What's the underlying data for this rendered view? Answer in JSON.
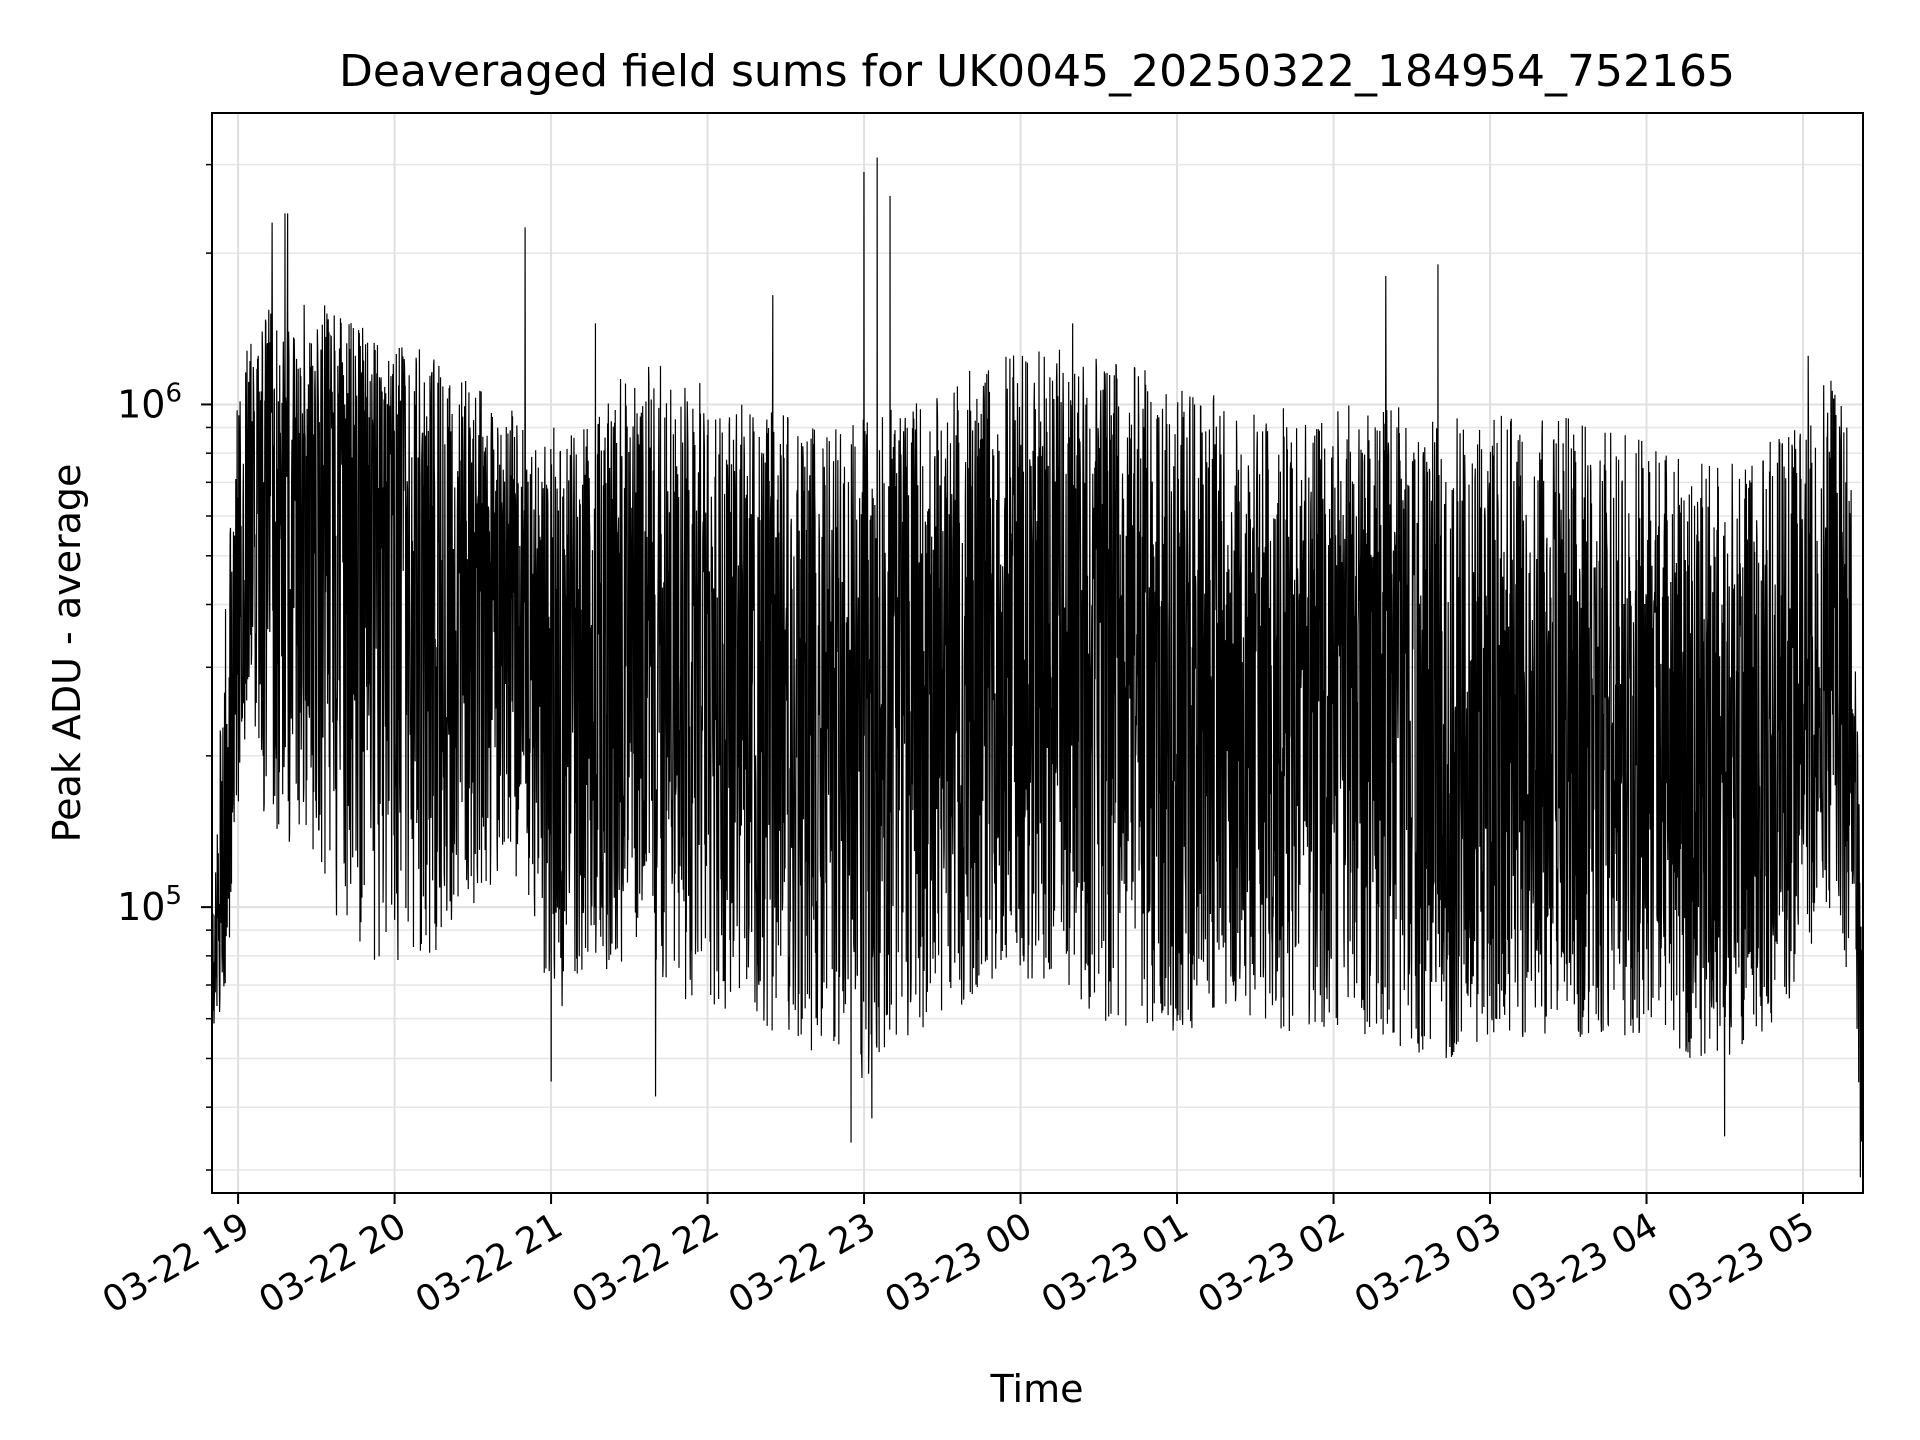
{
  "chart_data": {
    "type": "line",
    "title": "Deaveraged field sums for UK0045_20250322_184954_752165",
    "xlabel": "Time",
    "ylabel": "Peak ADU - average",
    "yscale": "log",
    "ylim": [
      27000,
      3800000
    ],
    "xlim": [
      "2025-03-22 18:50",
      "2025-03-23 05:23"
    ],
    "grid": true,
    "series_color": "#000000",
    "x_ticks": [
      {
        "label": "03-22 19",
        "time": "2025-03-22 19:00"
      },
      {
        "label": "03-22 20",
        "time": "2025-03-22 20:00"
      },
      {
        "label": "03-22 21",
        "time": "2025-03-22 21:00"
      },
      {
        "label": "03-22 22",
        "time": "2025-03-22 22:00"
      },
      {
        "label": "03-22 23",
        "time": "2025-03-22 23:00"
      },
      {
        "label": "03-23 00",
        "time": "2025-03-23 00:00"
      },
      {
        "label": "03-23 01",
        "time": "2025-03-23 01:00"
      },
      {
        "label": "03-23 02",
        "time": "2025-03-23 02:00"
      },
      {
        "label": "03-23 03",
        "time": "2025-03-23 03:00"
      },
      {
        "label": "03-23 04",
        "time": "2025-03-23 04:00"
      },
      {
        "label": "03-23 05",
        "time": "2025-03-23 05:00"
      }
    ],
    "y_ticks": [
      {
        "base": "10",
        "exp": "5",
        "value": 100000
      },
      {
        "base": "10",
        "exp": "6",
        "value": 1000000
      }
    ],
    "series": [
      {
        "x": [
          "2025-03-22 18:50",
          "2025-03-22 18:55",
          "2025-03-22 19:00",
          "2025-03-22 19:05",
          "2025-03-22 19:10",
          "2025-03-22 19:20",
          "2025-03-22 19:30",
          "2025-03-22 19:40",
          "2025-03-22 19:50",
          "2025-03-22 20:00",
          "2025-03-22 20:10",
          "2025-03-22 20:20",
          "2025-03-22 20:30",
          "2025-03-22 20:40",
          "2025-03-22 20:50",
          "2025-03-22 21:00",
          "2025-03-22 21:15",
          "2025-03-22 21:30",
          "2025-03-22 21:45",
          "2025-03-22 22:00",
          "2025-03-22 22:15",
          "2025-03-22 22:30",
          "2025-03-22 22:45",
          "2025-03-22 23:00",
          "2025-03-22 23:15",
          "2025-03-22 23:30",
          "2025-03-22 23:45",
          "2025-03-23 00:00",
          "2025-03-23 00:15",
          "2025-03-23 00:30",
          "2025-03-23 00:45",
          "2025-03-23 01:00",
          "2025-03-23 01:15",
          "2025-03-23 01:30",
          "2025-03-23 01:45",
          "2025-03-23 02:00",
          "2025-03-23 02:15",
          "2025-03-23 02:30",
          "2025-03-23 02:45",
          "2025-03-23 03:00",
          "2025-03-23 03:15",
          "2025-03-23 03:30",
          "2025-03-23 03:45",
          "2025-03-23 04:00",
          "2025-03-23 04:15",
          "2025-03-23 04:30",
          "2025-03-23 04:45",
          "2025-03-23 05:00",
          "2025-03-23 05:10",
          "2025-03-23 05:18",
          "2025-03-23 05:23"
        ],
        "y": [
          70000,
          110000,
          450000,
          850000,
          650000,
          600000,
          700000,
          650000,
          600000,
          550000,
          500000,
          450000,
          420000,
          400000,
          380000,
          300000,
          320000,
          330000,
          350000,
          320000,
          300000,
          280000,
          260000,
          240000,
          250000,
          270000,
          300000,
          320000,
          340000,
          330000,
          310000,
          290000,
          270000,
          250000,
          240000,
          230000,
          230000,
          230000,
          220000,
          210000,
          210000,
          200000,
          200000,
          190000,
          180000,
          190000,
          200000,
          230000,
          450000,
          300000,
          50000
        ],
        "upper_envelope": [
          90000,
          400000,
          1200000,
          1500000,
          1600000,
          1500000,
          1650000,
          1500000,
          1400000,
          1300000,
          1300000,
          1200000,
          1100000,
          1000000,
          950000,
          900000,
          900000,
          1200000,
          1200000,
          1100000,
          1000000,
          950000,
          900000,
          950000,
          1000000,
          1100000,
          1200000,
          1300000,
          1300000,
          1250000,
          1200000,
          1100000,
          1050000,
          1000000,
          1000000,
          1000000,
          1000000,
          1000000,
          950000,
          950000,
          950000,
          950000,
          900000,
          850000,
          800000,
          800000,
          850000,
          900000,
          1150000,
          900000,
          80000
        ],
        "lower_envelope": [
          55000,
          65000,
          150000,
          250000,
          150000,
          130000,
          120000,
          90000,
          80000,
          70000,
          70000,
          90000,
          100000,
          110000,
          110000,
          60000,
          70000,
          80000,
          70000,
          60000,
          60000,
          55000,
          50000,
          45000,
          55000,
          60000,
          65000,
          70000,
          65000,
          60000,
          55000,
          55000,
          60000,
          60000,
          55000,
          55000,
          55000,
          50000,
          50000,
          55000,
          55000,
          55000,
          55000,
          55000,
          50000,
          50000,
          55000,
          70000,
          100000,
          60000,
          30000
        ],
        "spikes": [
          {
            "x": "2025-03-22 19:13",
            "y": 2300000
          },
          {
            "x": "2025-03-22 19:18",
            "y": 2400000
          },
          {
            "x": "2025-03-22 19:19",
            "y": 2400000
          },
          {
            "x": "2025-03-22 20:50",
            "y": 2250000
          },
          {
            "x": "2025-03-22 21:17",
            "y": 1450000
          },
          {
            "x": "2025-03-22 22:25",
            "y": 1650000
          },
          {
            "x": "2025-03-22 23:00",
            "y": 2900000
          },
          {
            "x": "2025-03-22 23:05",
            "y": 3100000
          },
          {
            "x": "2025-03-22 23:10",
            "y": 2600000
          },
          {
            "x": "2025-03-23 00:20",
            "y": 1450000
          },
          {
            "x": "2025-03-23 02:20",
            "y": 1800000
          },
          {
            "x": "2025-03-23 02:40",
            "y": 1900000
          },
          {
            "x": "2025-03-23 05:02",
            "y": 1250000
          },
          {
            "x": "2025-03-22 22:55",
            "y": 34000
          },
          {
            "x": "2025-03-22 23:03",
            "y": 38000
          },
          {
            "x": "2025-03-22 21:40",
            "y": 42000
          },
          {
            "x": "2025-03-22 21:00",
            "y": 45000
          },
          {
            "x": "2025-03-23 04:30",
            "y": 35000
          },
          {
            "x": "2025-03-23 05:22",
            "y": 29000
          }
        ]
      }
    ]
  }
}
